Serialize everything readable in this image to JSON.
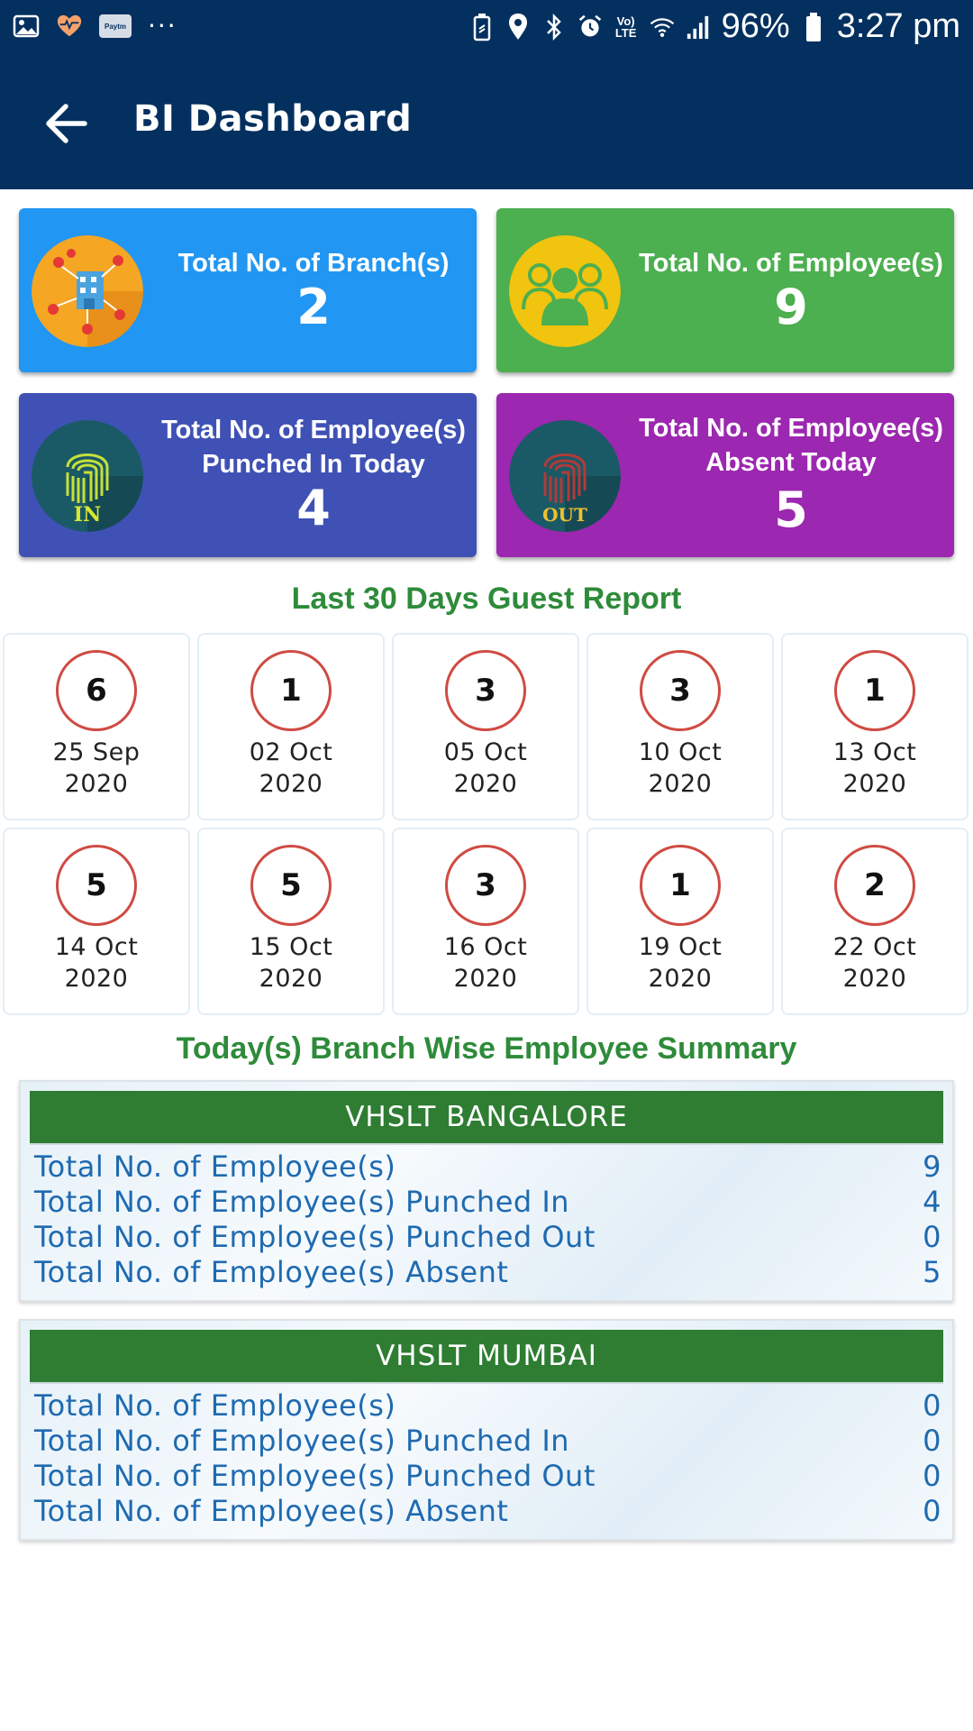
{
  "status_bar": {
    "battery": "96%",
    "time": "3:27 pm",
    "paytm_label": "Paytm",
    "volte_label": "Vo) LTE",
    "icons_left": [
      "image-icon",
      "health-icon",
      "paytm-icon",
      "more-dots-icon"
    ],
    "icons_right": [
      "battery-saver-icon",
      "location-icon",
      "bluetooth-icon",
      "alarm-icon",
      "volte-icon",
      "wifi-icon",
      "signal-icon",
      "battery-icon"
    ]
  },
  "app_bar": {
    "title": "BI Dashboard",
    "back_icon": "arrow-left-icon"
  },
  "cards": {
    "branches": {
      "label": "Total No. of Branch(s)",
      "value": "2",
      "color": "#2196f3"
    },
    "employees": {
      "label": "Total No. of Employee(s)",
      "value": "9",
      "color": "#4caf50"
    },
    "punched_in": {
      "label_line1": "Total No. of Employee(s)",
      "label_line2": "Punched In Today",
      "value": "4",
      "color": "#3f51b5",
      "badge": "IN"
    },
    "absent": {
      "label_line1": "Total No. of Employee(s)",
      "label_line2": "Absent Today",
      "value": "5",
      "color": "#9c27b0",
      "badge": "OUT"
    }
  },
  "guest_report": {
    "title": "Last 30 Days Guest Report",
    "items": [
      {
        "count": "6",
        "day": "25 Sep",
        "year": "2020"
      },
      {
        "count": "1",
        "day": "02 Oct",
        "year": "2020"
      },
      {
        "count": "3",
        "day": "05 Oct",
        "year": "2020"
      },
      {
        "count": "3",
        "day": "10 Oct",
        "year": "2020"
      },
      {
        "count": "1",
        "day": "13 Oct",
        "year": "2020"
      },
      {
        "count": "5",
        "day": "14 Oct",
        "year": "2020"
      },
      {
        "count": "5",
        "day": "15 Oct",
        "year": "2020"
      },
      {
        "count": "3",
        "day": "16 Oct",
        "year": "2020"
      },
      {
        "count": "1",
        "day": "19 Oct",
        "year": "2020"
      },
      {
        "count": "2",
        "day": "22 Oct",
        "year": "2020"
      }
    ]
  },
  "branch_summary": {
    "title": "Today(s) Branch Wise Employee Summary",
    "branches": [
      {
        "name": "VHSLT BANGALORE",
        "rows": [
          {
            "label": "Total No. of Employee(s)",
            "value": "9"
          },
          {
            "label": "Total No. of Employee(s) Punched In",
            "value": "4"
          },
          {
            "label": "Total No. of Employee(s) Punched Out",
            "value": "0"
          },
          {
            "label": "Total No. of Employee(s) Absent",
            "value": "5"
          }
        ]
      },
      {
        "name": "VHSLT MUMBAI",
        "rows": [
          {
            "label": "Total No. of Employee(s)",
            "value": "0"
          },
          {
            "label": "Total No. of Employee(s) Punched In",
            "value": "0"
          },
          {
            "label": "Total No. of Employee(s) Punched Out",
            "value": "0"
          },
          {
            "label": "Total No. of Employee(s) Absent",
            "value": "0"
          }
        ]
      }
    ]
  }
}
